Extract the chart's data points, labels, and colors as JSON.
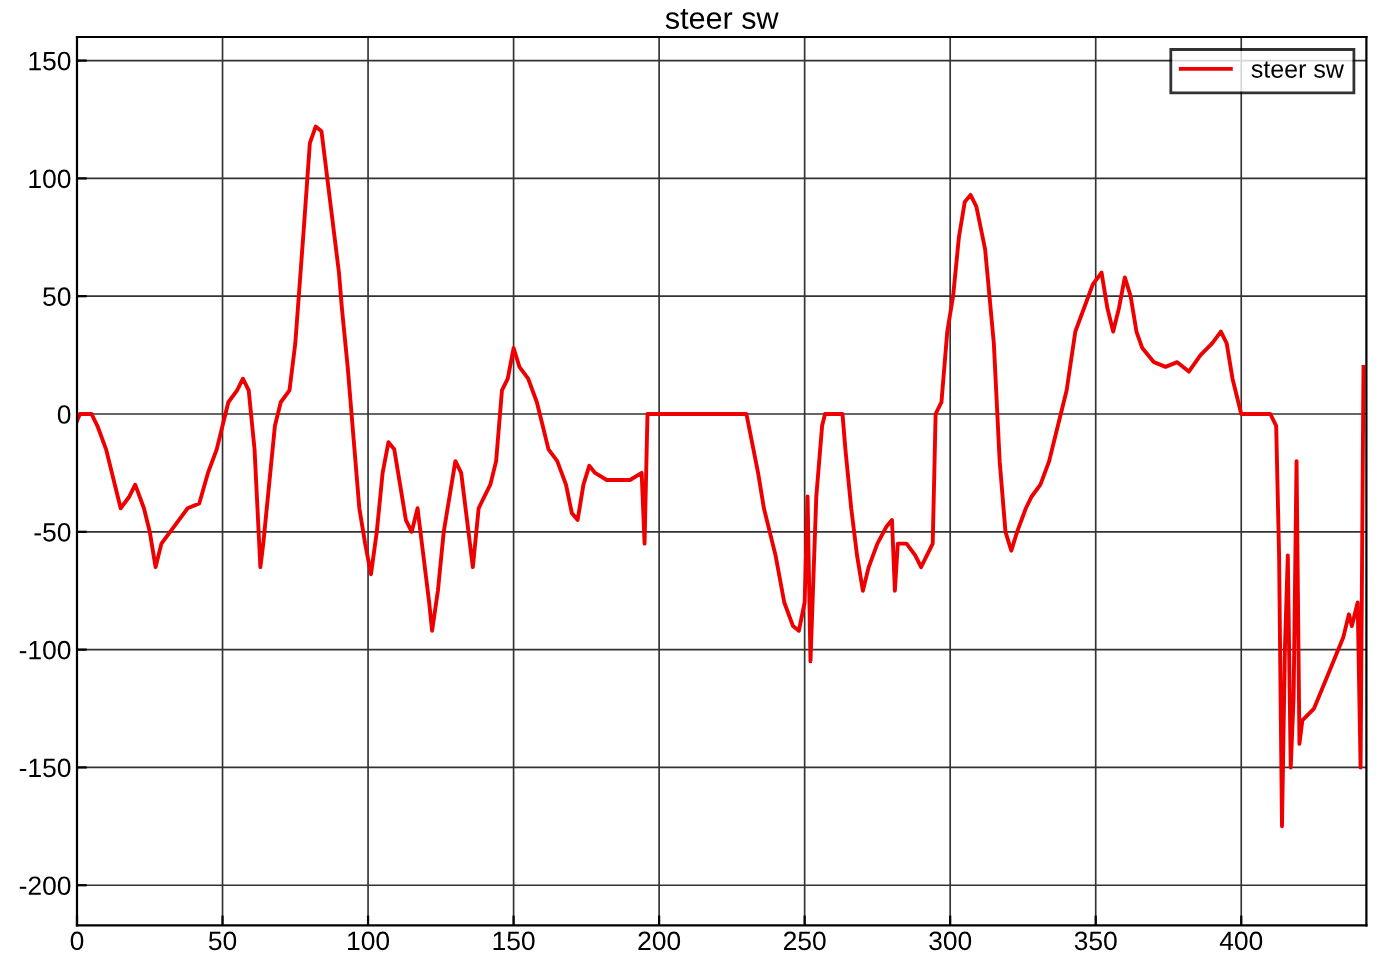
{
  "chart_data": {
    "type": "line",
    "title": "steer sw",
    "xlim": [
      0,
      443
    ],
    "ylim": [
      -217,
      160
    ],
    "xticks": [
      0,
      50,
      100,
      150,
      200,
      250,
      300,
      350,
      400
    ],
    "yticks": [
      -200,
      -150,
      -100,
      -50,
      0,
      50,
      100,
      150
    ],
    "grid": true,
    "legend": "top right",
    "line_style": "solid",
    "marker": "none",
    "series": [
      {
        "name": "steer sw",
        "color": "#ee0000",
        "x": [
          0,
          1,
          5,
          7,
          10,
          13,
          15,
          18,
          20,
          23,
          25,
          27,
          29,
          32,
          35,
          38,
          42,
          45,
          48,
          50,
          52,
          55,
          57,
          59,
          61,
          62,
          63,
          64,
          66,
          68,
          70,
          73,
          75,
          78,
          80,
          82,
          84,
          85,
          87,
          90,
          91,
          93,
          95,
          97,
          99,
          101,
          103,
          105,
          107,
          109,
          111,
          113,
          115,
          117,
          119,
          121,
          122,
          124,
          126,
          128,
          130,
          132,
          134,
          136,
          138,
          140,
          142,
          144,
          146,
          148,
          150,
          152,
          155,
          158,
          160,
          162,
          165,
          168,
          170,
          172,
          174,
          176,
          178,
          182,
          186,
          190,
          194,
          195,
          196,
          205,
          220,
          230,
          234,
          236,
          240,
          243,
          246,
          248,
          250,
          251,
          252,
          253,
          254,
          256,
          257,
          260,
          263,
          264,
          266,
          268,
          270,
          272,
          275,
          278,
          280,
          281,
          282,
          285,
          288,
          290,
          292,
          294,
          295,
          297,
          299,
          301,
          303,
          305,
          307,
          309,
          312,
          315,
          317,
          319,
          321,
          323,
          326,
          328,
          331,
          334,
          336,
          338,
          340,
          343,
          346,
          349,
          352,
          354,
          356,
          358,
          360,
          362,
          364,
          366,
          370,
          374,
          378,
          382,
          386,
          390,
          393,
          395,
          397,
          399,
          400,
          405,
          410,
          412,
          413,
          414,
          415,
          416,
          417,
          418,
          419,
          420,
          421,
          425,
          430,
          435,
          437,
          438,
          440,
          441,
          442
        ],
        "values": [
          -3,
          0,
          0,
          -5,
          -15,
          -30,
          -40,
          -35,
          -30,
          -40,
          -50,
          -65,
          -55,
          -50,
          -45,
          -40,
          -38,
          -25,
          -15,
          -5,
          5,
          10,
          15,
          10,
          -15,
          -40,
          -65,
          -55,
          -30,
          -5,
          5,
          10,
          30,
          80,
          115,
          122,
          120,
          110,
          90,
          60,
          45,
          20,
          -10,
          -40,
          -55,
          -68,
          -50,
          -25,
          -12,
          -15,
          -30,
          -45,
          -50,
          -40,
          -60,
          -80,
          -92,
          -75,
          -50,
          -35,
          -20,
          -25,
          -45,
          -65,
          -40,
          -35,
          -30,
          -20,
          10,
          15,
          28,
          20,
          15,
          5,
          -5,
          -15,
          -20,
          -30,
          -42,
          -45,
          -30,
          -22,
          -25,
          -28,
          -28,
          -28,
          -25,
          -55,
          0,
          0,
          0,
          0,
          -25,
          -40,
          -60,
          -80,
          -90,
          -92,
          -80,
          -35,
          -105,
          -70,
          -35,
          -5,
          0,
          0,
          0,
          -15,
          -40,
          -60,
          -75,
          -65,
          -55,
          -48,
          -45,
          -75,
          -55,
          -55,
          -60,
          -65,
          -60,
          -55,
          0,
          5,
          35,
          50,
          75,
          90,
          93,
          88,
          70,
          30,
          -20,
          -50,
          -58,
          -50,
          -40,
          -35,
          -30,
          -20,
          -10,
          0,
          10,
          35,
          45,
          55,
          60,
          45,
          35,
          45,
          58,
          50,
          35,
          28,
          22,
          20,
          22,
          18,
          25,
          30,
          35,
          30,
          15,
          5,
          0,
          0,
          0,
          -5,
          -60,
          -175,
          -100,
          -60,
          -150,
          -120,
          -20,
          -140,
          -130,
          -125,
          -110,
          -95,
          -85,
          -90,
          -80,
          -150,
          20
        ]
      }
    ]
  }
}
